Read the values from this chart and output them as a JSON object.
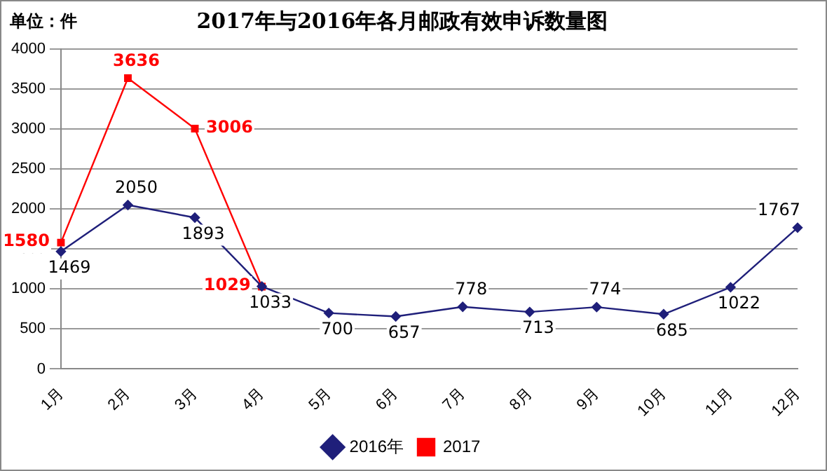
{
  "chart_data": {
    "type": "line",
    "title": "2017年与2016年各月邮政有效申诉数量图",
    "annotations": [
      "单位：件"
    ],
    "categories": [
      "1月",
      "2月",
      "3月",
      "4月",
      "5月",
      "6月",
      "7月",
      "8月",
      "9月",
      "10月",
      "11月",
      "12月"
    ],
    "series": [
      {
        "name": "2016年",
        "color": "#1f1f7a",
        "marker": "diamond",
        "values": [
          1469,
          2050,
          1893,
          1033,
          700,
          657,
          778,
          713,
          774,
          685,
          1022,
          1767
        ]
      },
      {
        "name": "2017",
        "color": "#ff0000",
        "marker": "square",
        "values": [
          1580,
          3636,
          3006,
          1029,
          null,
          null,
          null,
          null,
          null,
          null,
          null,
          null
        ]
      }
    ],
    "ylim": [
      0,
      4000
    ],
    "yticks": [
      0,
      500,
      1000,
      1500,
      2000,
      2500,
      3000,
      3500,
      4000
    ],
    "grid": "y",
    "legend": "bottom",
    "data_labels": true,
    "line_style": "solid"
  }
}
